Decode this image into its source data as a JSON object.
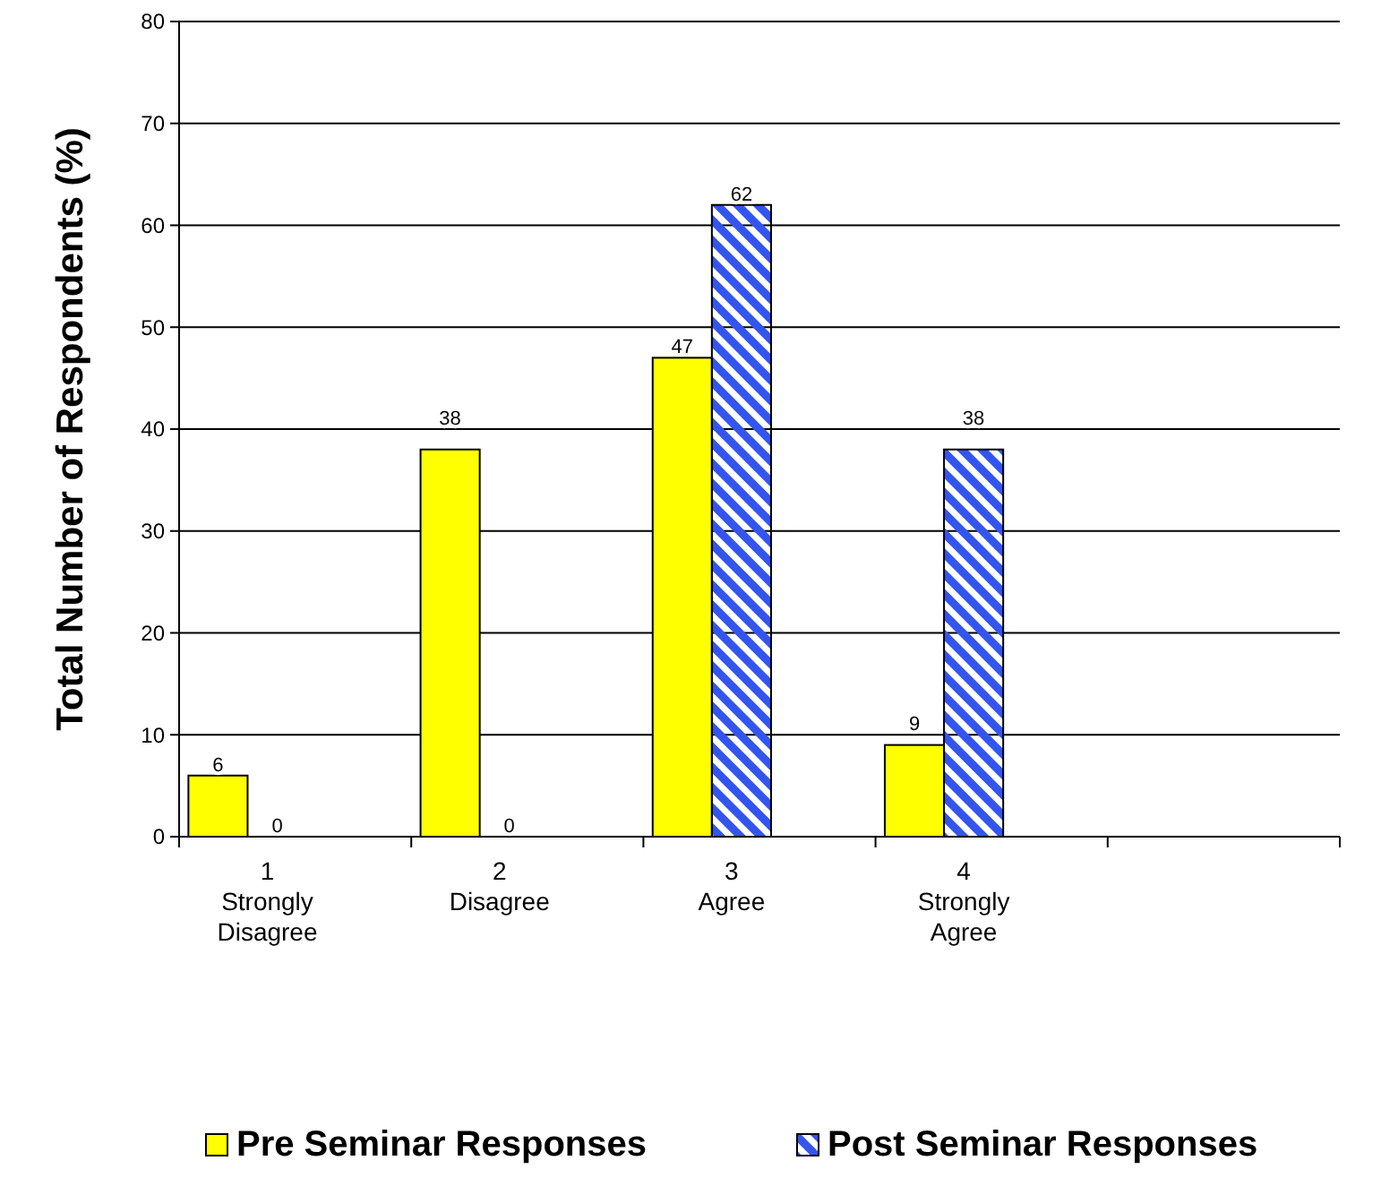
{
  "chart_data": {
    "type": "bar",
    "ylabel": "Total Number of Respondents (%)",
    "categories": [
      "1\nStrongly\nDisagree",
      "2\nDisagree",
      "3\nAgree",
      "4\nStrongly\nAgree",
      null
    ],
    "series": [
      {
        "name": "Pre Seminar Responses",
        "color": "#ffff00",
        "values": [
          6,
          38,
          47,
          9,
          null
        ]
      },
      {
        "name": "Post Seminar Responses",
        "color": "#3355ee",
        "values": [
          0,
          0,
          62,
          38,
          null
        ]
      }
    ],
    "ylim": [
      0,
      80
    ],
    "yticks": [
      0,
      10,
      20,
      30,
      40,
      50,
      60,
      70,
      80
    ],
    "grid": "y",
    "legend": "bottom",
    "data_labels": true
  }
}
